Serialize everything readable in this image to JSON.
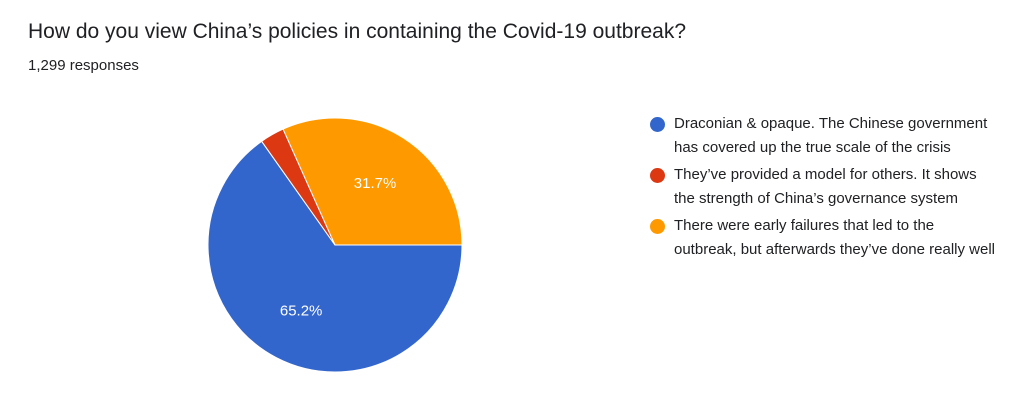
{
  "title": "How do you view China’s policies in containing the Covid-19 outbreak?",
  "subtitle": "1,299 responses",
  "chart_data": {
    "type": "pie",
    "title": "How do you view China’s policies in containing the Covid-19 outbreak?",
    "total_responses": 1299,
    "slices": [
      {
        "label": "Draconian & opaque. The Chinese government has covered up the true scale of the crisis",
        "value": 65.2,
        "display": "65.2%",
        "color": "#3366cc"
      },
      {
        "label": "They’ve provided a model for others. It shows the strength of China’s governance system",
        "value": 3.1,
        "display": "",
        "color": "#dc3912"
      },
      {
        "label": "There were early failures that led to the outbreak, but afterwards they’ve done really well",
        "value": 31.7,
        "display": "31.7%",
        "color": "#ff9900"
      }
    ],
    "legend_position": "right"
  }
}
